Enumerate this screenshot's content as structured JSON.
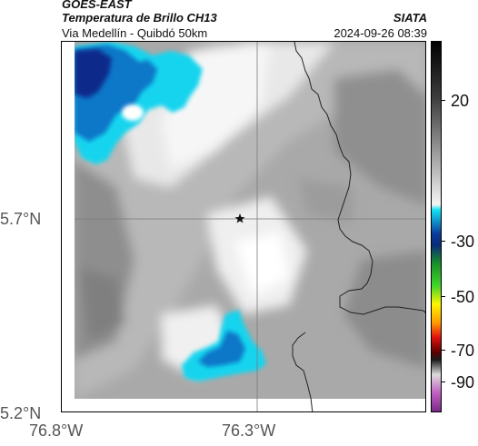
{
  "header": {
    "source": "GOES-EAST",
    "product": "Temperatura de Brillo CH13",
    "brand": "SIATA",
    "subtitle": "Via Medellín - Quibdó 50km",
    "timestamp": "2024-09-26 08:39"
  },
  "map": {
    "lat_labels": [
      "5.7°N",
      "5.2°N"
    ],
    "lon_labels": [
      "76.8°W",
      "76.3°W"
    ],
    "marker_icon": "star-icon",
    "colors": {
      "cold_dark": "#0a2a8a",
      "cold_mid": "#0d77c8",
      "cyan": "#13d4ee",
      "border": "#222222"
    }
  },
  "colorbar": {
    "tick_labels": [
      "20",
      "-30",
      "-50",
      "-70",
      "-90"
    ]
  }
}
